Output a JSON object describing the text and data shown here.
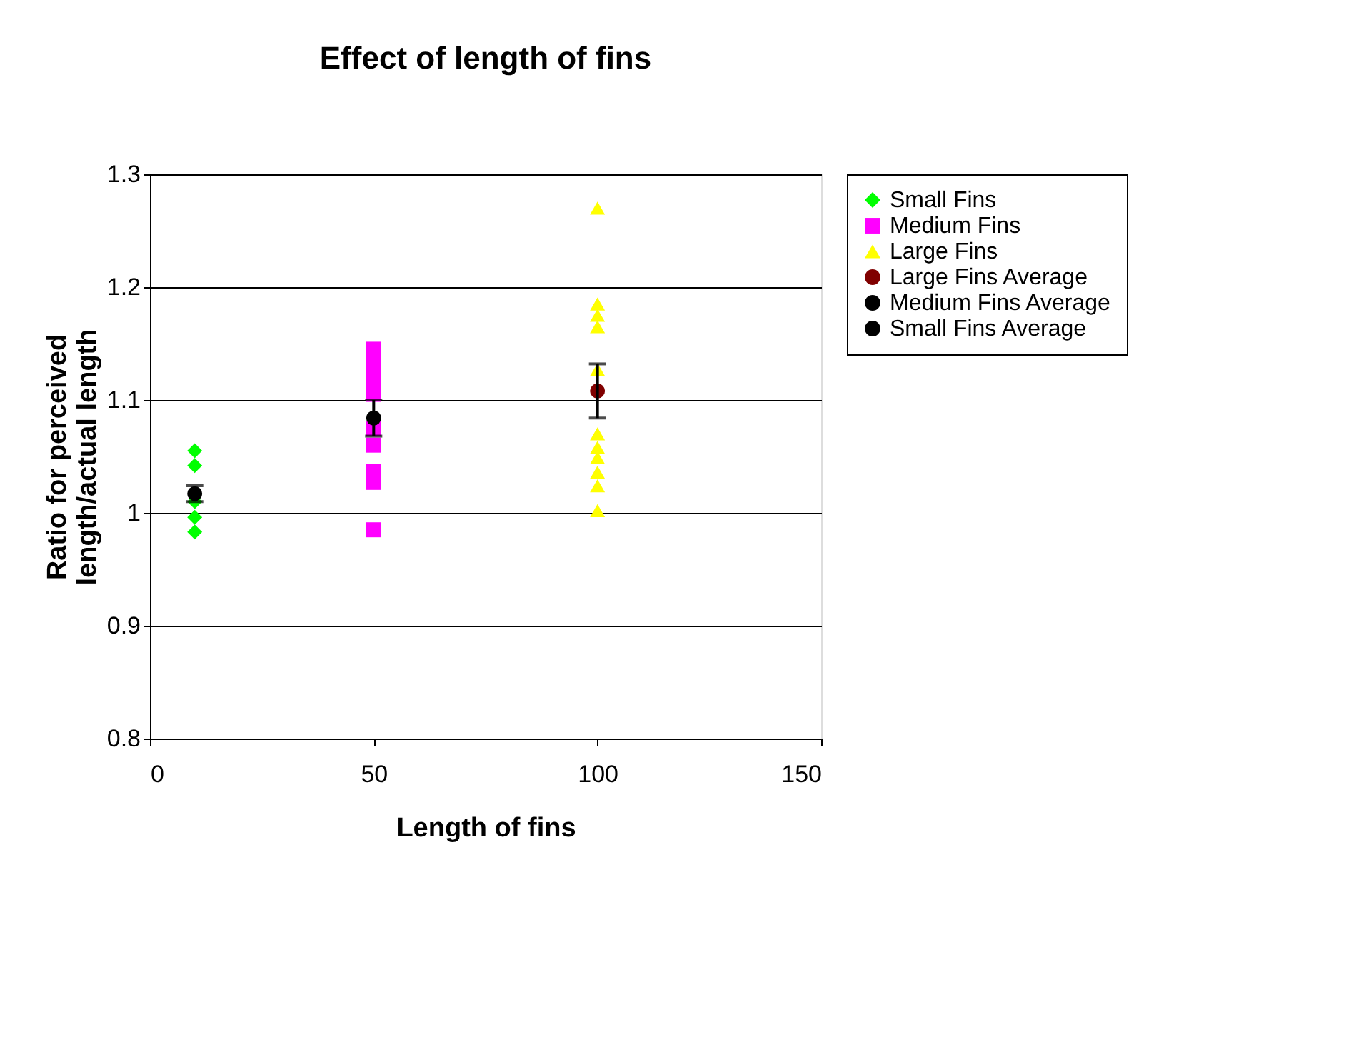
{
  "chart_data": {
    "type": "scatter",
    "title": "Effect of length of fins",
    "xlabel": "Length of fins",
    "ylabel": "Ratio for perceived length/actual length",
    "xlim": [
      0,
      150
    ],
    "xticks": [
      0,
      50,
      100,
      150
    ],
    "ylim": [
      0.8,
      1.3
    ],
    "yticks": [
      0.8,
      0.9,
      1,
      1.1,
      1.2,
      1.3
    ],
    "grid": "y",
    "legend": "right",
    "series": [
      {
        "name": "Small Fins",
        "color": "#00ff00",
        "marker": "diamond",
        "x": [
          10,
          10,
          10,
          10,
          10
        ],
        "values": [
          0.983,
          0.996,
          1.01,
          1.042,
          1.055
        ]
      },
      {
        "name": "Medium Fins",
        "color": "#ff00ff",
        "marker": "square",
        "x": [
          50,
          50,
          50,
          50,
          50,
          50,
          50,
          50,
          50,
          50
        ],
        "values": [
          1.145,
          1.135,
          1.125,
          1.115,
          1.105,
          1.075,
          1.06,
          1.037,
          1.027,
          0.985
        ]
      },
      {
        "name": "Large Fins",
        "color": "#ffff00",
        "marker": "triangle",
        "x": [
          100,
          100,
          100,
          100,
          100,
          100,
          100,
          100,
          100,
          100,
          100
        ],
        "values": [
          1.27,
          1.185,
          1.175,
          1.165,
          1.127,
          1.07,
          1.058,
          1.049,
          1.036,
          1.024,
          1.002
        ]
      },
      {
        "name": "Large Fins Average",
        "color": "#800000",
        "marker": "circle",
        "x": [
          100
        ],
        "values": [
          1.108
        ],
        "errors": [
          0.024
        ]
      },
      {
        "name": "Medium Fins Average",
        "color": "#000000",
        "marker": "circle",
        "x": [
          50
        ],
        "values": [
          1.084
        ],
        "errors": [
          0.016
        ]
      },
      {
        "name": "Small Fins Average",
        "color": "#000000",
        "marker": "circle",
        "x": [
          10
        ],
        "values": [
          1.017
        ],
        "errors": [
          0.007
        ]
      }
    ]
  }
}
